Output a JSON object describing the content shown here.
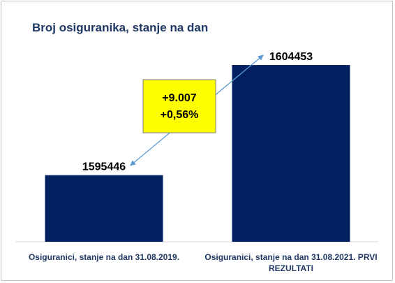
{
  "chart_data": {
    "type": "bar",
    "title": "Broj osiguranika, stanje na dan",
    "categories": [
      [
        "Osiguranici, stanje na dan 31.08.2019."
      ],
      [
        "Osiguranici, stanje na dan 31.08.2021. PRVI",
        "REZULTATI"
      ]
    ],
    "values": [
      1595446,
      1604453
    ],
    "data_labels": [
      "1595446",
      "1604453"
    ],
    "ylim": [
      1590000,
      1606000
    ],
    "grid": false,
    "bar_color": "#002060",
    "annotation": {
      "lines": [
        "+9.007",
        "+0,56%"
      ],
      "box_color": "#ffff00",
      "arrow_color": "#5b9bd5"
    }
  }
}
